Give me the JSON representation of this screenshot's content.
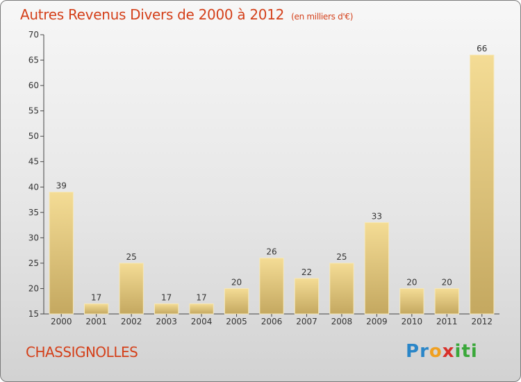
{
  "header": {
    "title": "Autres Revenus Divers de 2000 à 2012",
    "unit": "(en milliers d'€)"
  },
  "footer": {
    "commune": "CHASSIGNOLLES"
  },
  "logo": {
    "letters": [
      "P",
      "r",
      "o",
      "x",
      "i",
      "t",
      "i"
    ],
    "colors": [
      "#2a86c8",
      "#2a86c8",
      "#f0a020",
      "#d8302a",
      "#3aa83a",
      "#3aa83a",
      "#3aa83a"
    ]
  },
  "colors": {
    "title": "#d4401a",
    "bar_light": "#f4dc95",
    "bar_dark": "#c4a860"
  },
  "chart_data": {
    "type": "bar",
    "title": "Autres Revenus Divers de 2000 à 2012",
    "xlabel": "",
    "ylabel": "",
    "ylim": [
      15,
      70
    ],
    "yticks": [
      15,
      20,
      25,
      30,
      35,
      40,
      45,
      50,
      55,
      60,
      65,
      70
    ],
    "grid": false,
    "categories": [
      "2000",
      "2001",
      "2002",
      "2003",
      "2004",
      "2005",
      "2006",
      "2007",
      "2008",
      "2009",
      "2010",
      "2011",
      "2012"
    ],
    "values": [
      39,
      17,
      25,
      17,
      17,
      20,
      26,
      22,
      25,
      33,
      20,
      20,
      66
    ]
  }
}
